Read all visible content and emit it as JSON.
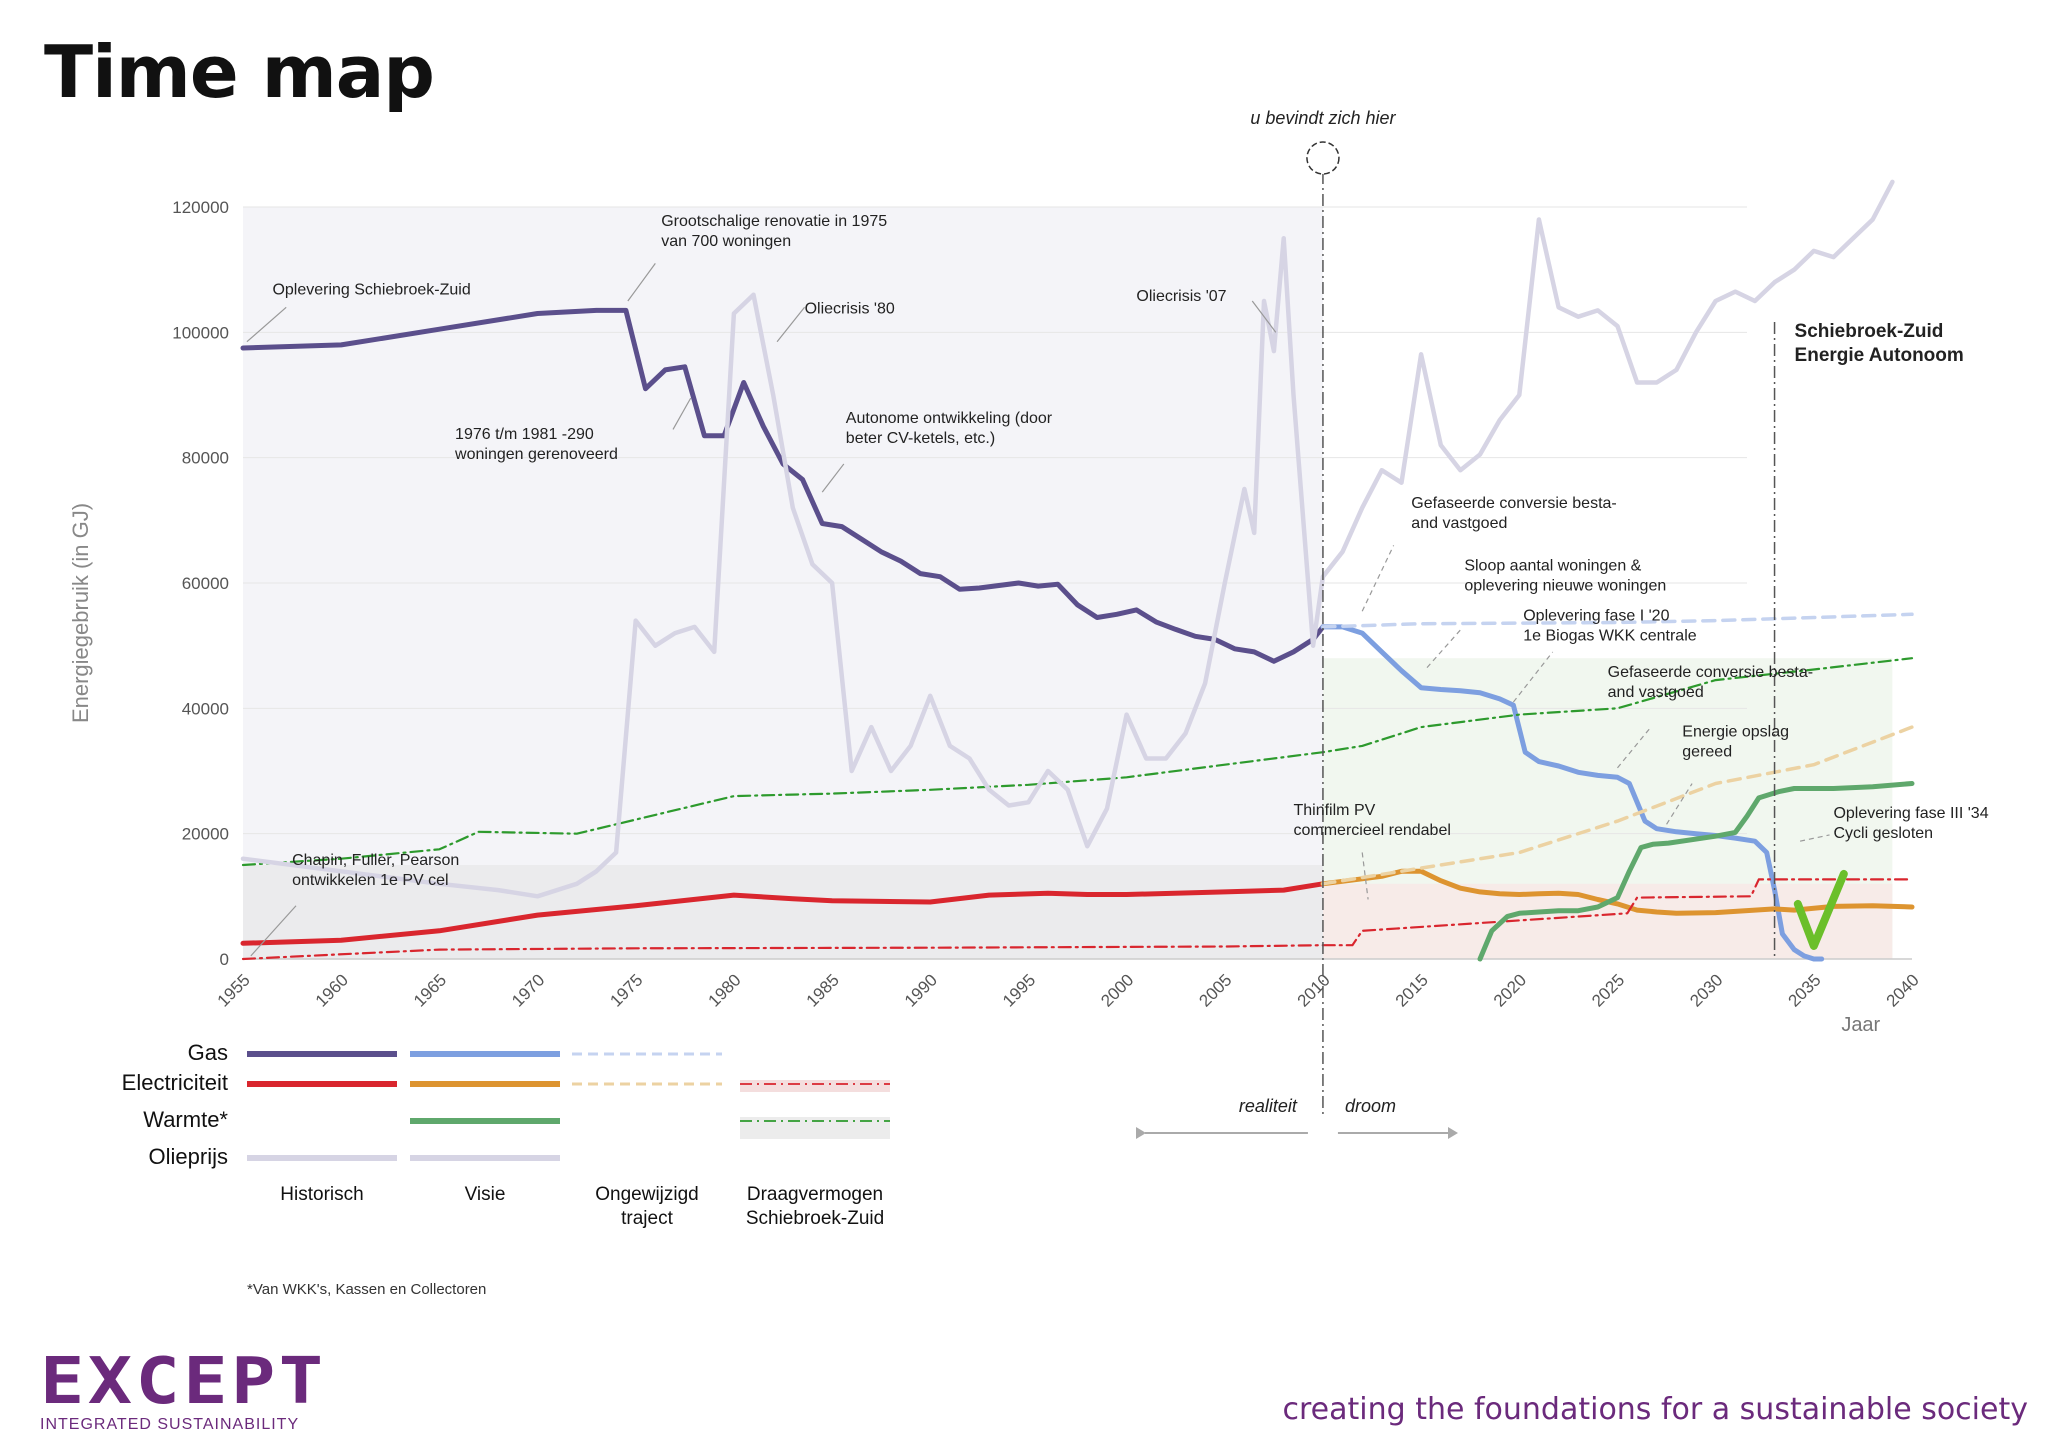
{
  "title": "Time map",
  "colors": {
    "gas_hist": "#5b4f8c",
    "gas_vis": "#7d9fe0",
    "gas_unch": "#c5d3f0",
    "elec_hist": "#d9262e",
    "elec_vis": "#dd9430",
    "elec_unch": "#ecd2a2",
    "heat_vis": "#5fa86c",
    "heat_cap": "#2d9a2d",
    "elec_cap": "#d9262e",
    "oil": "#d6d4e4",
    "check": "#6bbf2a",
    "axis": "#999999",
    "grid": "#e6e6e6"
  },
  "chart_data": {
    "type": "line",
    "title": "Time map",
    "xlabel": "Jaar",
    "ylabel": "Energiegebruik (in GJ)",
    "xlim": [
      1955,
      2040
    ],
    "ylim": [
      0,
      120000
    ],
    "xticks": [
      "1955",
      "1960",
      "1965",
      "1970",
      "1975",
      "1980",
      "1985",
      "1990",
      "1995",
      "2000",
      "2005",
      "2010",
      "2015",
      "2020",
      "2025",
      "2030",
      "2035",
      "2040"
    ],
    "yticks": [
      "0",
      "20000",
      "40000",
      "60000",
      "80000",
      "100000",
      "120000"
    ],
    "grid": true,
    "series": [
      {
        "name": "Gas – Historisch",
        "key": "gas_hist",
        "style": "solid",
        "x": [
          1955,
          1960,
          1965,
          1970,
          1973,
          1974.5,
          1975.5,
          1976.5,
          1977.5,
          1978.5,
          1979.5,
          1980.5,
          1981.5,
          1982.5,
          1983.5,
          1984.5,
          1985.5,
          1986.5,
          1987.5,
          1988.5,
          1989.5,
          1990.5,
          1991.5,
          1992.5,
          1994.5,
          1995.5,
          1996.5,
          1997.5,
          1998.5,
          1999.5,
          2000.5,
          2001.5,
          2002.5,
          2003.5,
          2004.5,
          2005.5,
          2006.5,
          2007.5,
          2008.5,
          2009.5,
          2010
        ],
        "y": [
          97500,
          98000,
          100500,
          103000,
          103500,
          103500,
          91000,
          94000,
          94500,
          83500,
          83500,
          92000,
          85000,
          79000,
          76500,
          69500,
          69000,
          67000,
          65000,
          63500,
          61500,
          61000,
          59000,
          59200,
          60000,
          59500,
          59800,
          56500,
          54500,
          55000,
          55700,
          53800,
          52600,
          51500,
          51000,
          49500,
          49000,
          47500,
          49000,
          51000,
          53000
        ]
      },
      {
        "name": "Gas – Visie",
        "key": "gas_vis",
        "style": "solid",
        "x": [
          2010,
          2011,
          2012,
          2013,
          2014,
          2015,
          2016,
          2017,
          2018,
          2019,
          2019.7,
          2020.3,
          2021,
          2022,
          2023,
          2024,
          2025,
          2025.6,
          2026.4,
          2027,
          2028,
          2029,
          2030,
          2031,
          2032,
          2032.6,
          2033,
          2033.4,
          2034,
          2034.5,
          2035,
          2035.4
        ],
        "y": [
          53000,
          53000,
          52000,
          49000,
          46000,
          43300,
          43000,
          42800,
          42500,
          41500,
          40500,
          33000,
          31500,
          30800,
          29800,
          29300,
          29000,
          28000,
          22000,
          20800,
          20300,
          20000,
          19700,
          19300,
          18800,
          17000,
          11000,
          4000,
          1500,
          500,
          0,
          0
        ]
      },
      {
        "name": "Gas – Ongewijzigd traject",
        "key": "gas_unch",
        "style": "dashed",
        "x": [
          2010,
          2015,
          2020,
          2025,
          2030,
          2035,
          2040
        ],
        "y": [
          53000,
          53500,
          53600,
          53700,
          54000,
          54500,
          55000
        ]
      },
      {
        "name": "Electriciteit – Historisch",
        "key": "elec_hist",
        "style": "solid",
        "x": [
          1955,
          1960,
          1965,
          1970,
          1975,
          1980,
          1983,
          1985,
          1987,
          1990,
          1993,
          1996,
          1998,
          2000,
          2005,
          2008,
          2010
        ],
        "y": [
          2500,
          3000,
          4500,
          7000,
          8500,
          10200,
          9600,
          9300,
          9200,
          9100,
          10200,
          10500,
          10300,
          10300,
          10700,
          11000,
          12000
        ]
      },
      {
        "name": "Electriciteit – Visie",
        "key": "elec_vis",
        "style": "solid",
        "x": [
          2010,
          2013,
          2014,
          2015,
          2016,
          2017,
          2018,
          2019,
          2020,
          2021,
          2022,
          2023,
          2024,
          2025,
          2026,
          2027,
          2028,
          2030,
          2032,
          2033,
          2034,
          2036,
          2038,
          2040
        ],
        "y": [
          12000,
          13200,
          14000,
          14000,
          12500,
          11300,
          10700,
          10400,
          10300,
          10400,
          10500,
          10300,
          9500,
          8800,
          7800,
          7500,
          7300,
          7400,
          7800,
          8000,
          7800,
          8400,
          8500,
          8300
        ]
      },
      {
        "name": "Electriciteit – Ongewijzigd traject",
        "key": "elec_unch",
        "style": "dashed",
        "x": [
          2010,
          2015,
          2020,
          2025,
          2030,
          2035,
          2040
        ],
        "y": [
          12000,
          14500,
          17000,
          22000,
          28000,
          31000,
          37000
        ]
      },
      {
        "name": "Electriciteit – Draagvermogen",
        "key": "elec_cap",
        "style": "dashdot",
        "x": [
          1955,
          1965,
          1975,
          1990,
          2005,
          2010,
          2011.5,
          2012,
          2025.5,
          2026,
          2031.8,
          2032.2,
          2040
        ],
        "y": [
          0,
          1500,
          1700,
          1800,
          2000,
          2200,
          2200,
          4500,
          7300,
          9800,
          10000,
          12700,
          12700
        ]
      },
      {
        "name": "Warmte* – Visie",
        "key": "heat_vis",
        "style": "solid",
        "x": [
          2018,
          2018.6,
          2019.4,
          2020,
          2021,
          2022,
          2023,
          2024,
          2025,
          2025.6,
          2026.2,
          2026.8,
          2027.6,
          2030,
          2031,
          2031.6,
          2032.2,
          2033.2,
          2034,
          2036,
          2038,
          2040
        ],
        "y": [
          0,
          4500,
          6800,
          7300,
          7500,
          7700,
          7700,
          8300,
          9800,
          14000,
          17800,
          18300,
          18500,
          19600,
          20200,
          22800,
          25700,
          26700,
          27200,
          27200,
          27500,
          28000
        ]
      },
      {
        "name": "Warmte* – Draagvermogen",
        "key": "heat_cap",
        "style": "dashdot",
        "x": [
          1955,
          1960,
          1965,
          1967,
          1972,
          1980,
          1985,
          1990,
          1995,
          2000,
          2005,
          2010,
          2012,
          2014,
          2015,
          2020,
          2025,
          2030,
          2035,
          2040
        ],
        "y": [
          15000,
          16000,
          17500,
          20300,
          20000,
          26000,
          26400,
          27000,
          27800,
          29000,
          31000,
          33000,
          34000,
          36000,
          37000,
          39000,
          40000,
          44500,
          46200,
          48000
        ]
      },
      {
        "name": "Olieprijs – Historisch",
        "key": "oil",
        "style": "solid",
        "x": [
          1955,
          1960,
          1965,
          1968,
          1970,
          1972,
          1973,
          1974,
          1975,
          1976,
          1977,
          1978,
          1979,
          1980,
          1981,
          1982,
          1983,
          1984,
          1985,
          1986,
          1987,
          1988,
          1989,
          1990,
          1991,
          1992,
          1993,
          1994,
          1995,
          1996,
          1997,
          1998,
          1999,
          2000,
          2001,
          2002,
          2003,
          2004,
          2005,
          2006,
          2006.5,
          2007,
          2007.5,
          2008,
          2008.5,
          2009,
          2009.5,
          2010
        ],
        "y": [
          16000,
          14000,
          12000,
          11000,
          10000,
          12000,
          14000,
          17000,
          54000,
          50000,
          52000,
          53000,
          49000,
          103000,
          106000,
          90000,
          72000,
          63000,
          60000,
          30000,
          37000,
          30000,
          34000,
          42000,
          34000,
          32000,
          27000,
          24500,
          25000,
          30000,
          27000,
          18000,
          24000,
          39000,
          32000,
          32000,
          36000,
          44000,
          60000,
          75000,
          68000,
          105000,
          97000,
          115000,
          90000,
          70000,
          50000,
          61000
        ]
      },
      {
        "name": "Olieprijs – Visie",
        "key": "oil",
        "style": "solid",
        "x": [
          2010,
          2011,
          2012,
          2013,
          2014,
          2015,
          2016,
          2017,
          2018,
          2019,
          2020,
          2021,
          2022,
          2023,
          2024,
          2025,
          2026,
          2027,
          2028,
          2029,
          2030,
          2031,
          2032,
          2033,
          2034,
          2035,
          2036,
          2037,
          2038,
          2039
        ],
        "y": [
          61000,
          65000,
          72000,
          78000,
          76000,
          96500,
          82000,
          78000,
          80500,
          86000,
          90000,
          118000,
          104000,
          102500,
          103500,
          101000,
          92000,
          92000,
          94000,
          100000,
          105000,
          106500,
          105000,
          108000,
          110000,
          113000,
          112000,
          115000,
          118000,
          124000
        ]
      }
    ],
    "legend": {
      "rows": [
        "Gas",
        "Electriciteit",
        "Warmte*",
        "Olieprijs"
      ],
      "columns": [
        "Historisch",
        "Visie",
        "Ongewijzigd\ntraject",
        "Draagvermogen\nSchiebroek-Zuid"
      ]
    },
    "annotations": [
      {
        "text": "Oplevering Schiebroek-Zuid",
        "x": 1956.5,
        "y": 106000,
        "lx": [
          1955.2,
          1957.2
        ],
        "ly": [
          98500,
          104000
        ]
      },
      {
        "text": "Grootschalige renovatie in 1975\nvan 700 woningen",
        "x": 1976.3,
        "y": 117000,
        "lx": [
          1974.6,
          1976
        ],
        "ly": [
          105000,
          111000
        ]
      },
      {
        "text": "Oliecrisis '80",
        "x": 1983.6,
        "y": 103000,
        "lx": [
          1982.2,
          1983.6
        ],
        "ly": [
          98500,
          104000
        ]
      },
      {
        "text": "Oliecrisis  '07",
        "x": 2000.5,
        "y": 105000,
        "lx": [
          2007.6,
          2006.4
        ],
        "ly": [
          100000,
          105000
        ]
      },
      {
        "text": "1976 t/m 1981 -290\nwoningen gerenoveerd",
        "x": 1965.8,
        "y": 83000,
        "lx": [
          1976.9,
          1977.8
        ],
        "ly": [
          84500,
          89500
        ]
      },
      {
        "text": "Autonome ontwikkeling (door\nbeter CV-ketels, etc.)",
        "x": 1985.7,
        "y": 85500,
        "lx": [
          1984.5,
          1985.6
        ],
        "ly": [
          74500,
          79000
        ]
      },
      {
        "text": "Gefaseerde conversie besta-\nand vastgoed",
        "x": 2014.5,
        "y": 72000,
        "lx": [
          2012,
          2013.6
        ],
        "ly": [
          55500,
          66000
        ]
      },
      {
        "text": "Sloop aantal woningen &\noplevering nieuwe woningen",
        "x": 2017.2,
        "y": 62000,
        "lx": [
          2015.3,
          2017
        ],
        "ly": [
          46500,
          52500
        ]
      },
      {
        "text": "Oplevering fase I '20\n1e Biogas WKK centrale",
        "x": 2020.2,
        "y": 54000,
        "lx": [
          2019.7,
          2021.7
        ],
        "ly": [
          41000,
          49000
        ]
      },
      {
        "text": "Gefaseerde conversie besta-\nand vastgoed",
        "x": 2024.5,
        "y": 45000,
        "lx": [
          2025,
          2026.7
        ],
        "ly": [
          30500,
          37000
        ]
      },
      {
        "text": "Energie opslag\ngereed",
        "x": 2028.3,
        "y": 35500,
        "lx": [
          2027.5,
          2028.8
        ],
        "ly": [
          21500,
          28000
        ]
      },
      {
        "text": "Thinfilm PV\ncommercieel rendabel",
        "x": 2008.5,
        "y": 23000,
        "lx": [
          2012,
          2012.3
        ],
        "ly": [
          17000,
          9500
        ]
      },
      {
        "text": "Chapin, Fuller, Pearson\nontwikkelen 1e PV cel",
        "x": 1957.5,
        "y": 15000,
        "lx": [
          1955.4,
          1957.7
        ],
        "ly": [
          500,
          8500
        ]
      },
      {
        "text": "Oplevering fase III '34\nCycli gesloten",
        "x": 2036,
        "y": 22500,
        "lx": [
          2034.3,
          2035.8
        ],
        "ly": [
          18800,
          19800
        ]
      }
    ],
    "markers": {
      "now_year": 2010,
      "now_label": "u bevindt zich hier",
      "autonomy_year": 2033,
      "autonomy_label": "Schiebroek-Zuid\nEnergie Autonoom",
      "left_label": "realiteit",
      "right_label": "droom"
    }
  },
  "footnote": "*Van WKK's, Kassen en Collectoren",
  "logo": {
    "name": "EXCEPT",
    "subtitle": "INTEGRATED SUSTAINABILITY"
  },
  "tagline": "creating the foundations for a sustainable society"
}
